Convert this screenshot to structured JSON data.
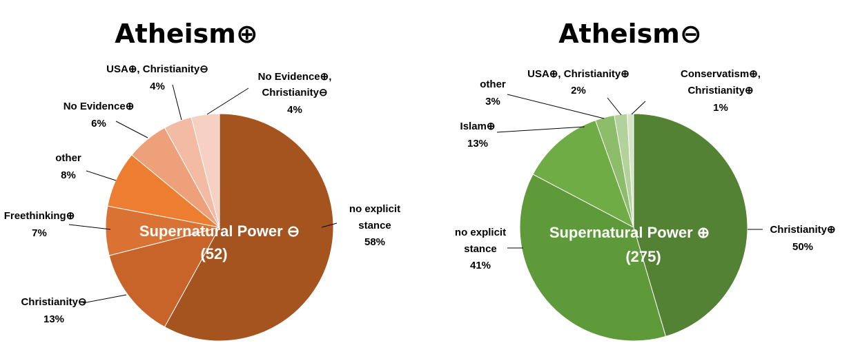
{
  "chart_data": [
    {
      "type": "pie",
      "title": "Atheism⊕",
      "center_label": "Supernatural Power ⊖",
      "center_count": "(52)",
      "slices": [
        {
          "label": "no explicit stance",
          "value": 58,
          "pct": "58%",
          "color": "#A55420"
        },
        {
          "label": "Christianity⊖",
          "value": 13,
          "pct": "13%",
          "color": "#C8632A"
        },
        {
          "label": "Freethinking⊕",
          "value": 7,
          "pct": "7%",
          "color": "#DA7234"
        },
        {
          "label": "other",
          "value": 8,
          "pct": "8%",
          "color": "#ED7D31"
        },
        {
          "label": "No Evidence⊕",
          "value": 6,
          "pct": "6%",
          "color": "#EEA07B"
        },
        {
          "label": "USA⊕, Christianity⊖",
          "value": 4,
          "pct": "4%",
          "color": "#F3BBA4"
        },
        {
          "label": "No Evidence⊕, Christianity⊖",
          "value": 4,
          "pct": "4%",
          "color": "#F6D0C2"
        }
      ]
    },
    {
      "type": "pie",
      "title": "Atheism⊖",
      "center_label": "Supernatural Power ⊕",
      "center_count": "(275)",
      "slices": [
        {
          "label": "Christianity⊕",
          "value": 50,
          "pct": "50%",
          "color": "#548235"
        },
        {
          "label": "no explicit stance",
          "value": 41,
          "pct": "41%",
          "color": "#5F9A3A"
        },
        {
          "label": "Islam⊕",
          "value": 13,
          "pct": "13%",
          "color": "#6FAC46"
        },
        {
          "label": "other",
          "value": 3,
          "pct": "3%",
          "color": "#8DBC6A"
        },
        {
          "label": "USA⊕, Christianity⊕",
          "value": 2,
          "pct": "2%",
          "color": "#B3D19A"
        },
        {
          "label": "Conservatism⊕, Christianity⊕",
          "value": 1,
          "pct": "1%",
          "color": "#D5E5C8"
        }
      ]
    }
  ]
}
